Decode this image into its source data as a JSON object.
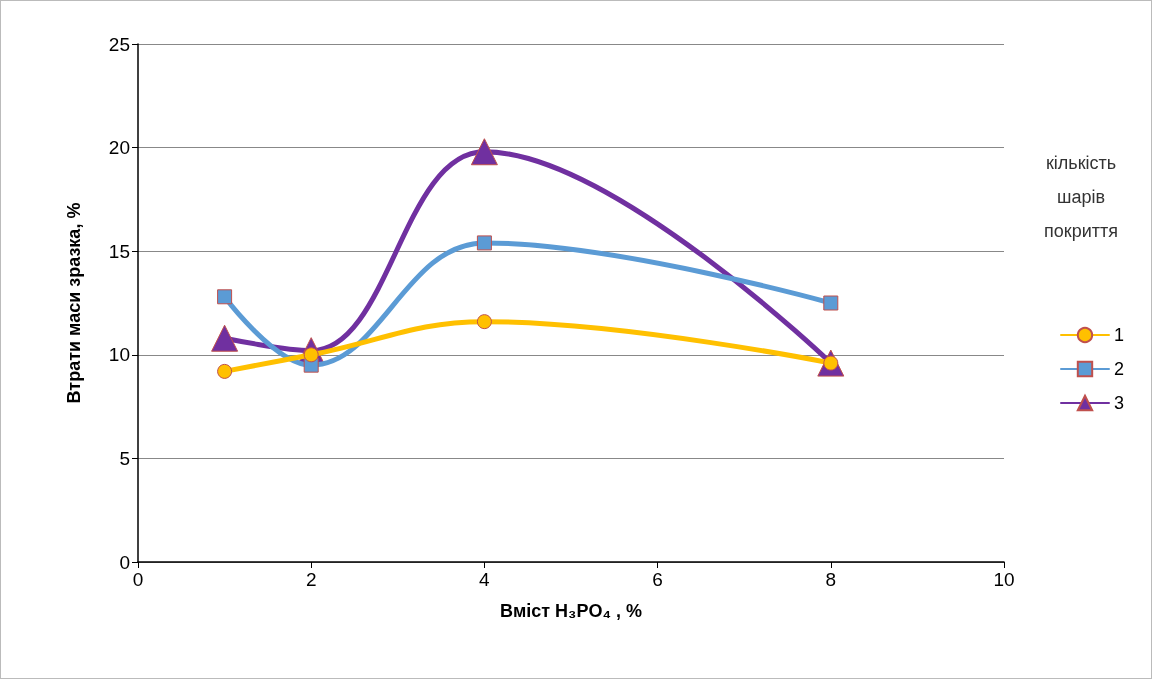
{
  "chart_data": {
    "type": "line",
    "xlabel": "Вміст H₃PO₄ , %",
    "ylabel": "Втрати маси зразка, %",
    "legend_title": "кількість шарів покриття",
    "x": [
      1,
      2,
      4,
      8
    ],
    "series": [
      {
        "name": "1",
        "color": "#ffc000",
        "marker": "circle",
        "values": [
          9.2,
          10.0,
          11.6,
          9.6
        ]
      },
      {
        "name": "2",
        "color": "#5b9bd5",
        "marker": "square",
        "values": [
          12.8,
          9.5,
          15.4,
          12.5
        ]
      },
      {
        "name": "3",
        "color": "#7030a0",
        "marker": "triangle",
        "values": [
          10.8,
          10.2,
          19.8,
          9.6
        ]
      }
    ],
    "xlim": [
      0,
      10
    ],
    "xticks": [
      0,
      2,
      4,
      6,
      8,
      10
    ],
    "ylim": [
      0,
      25
    ],
    "yticks": [
      0,
      5,
      10,
      15,
      20,
      25
    ],
    "grid": "y",
    "legend": "right",
    "line_style": "solid"
  }
}
